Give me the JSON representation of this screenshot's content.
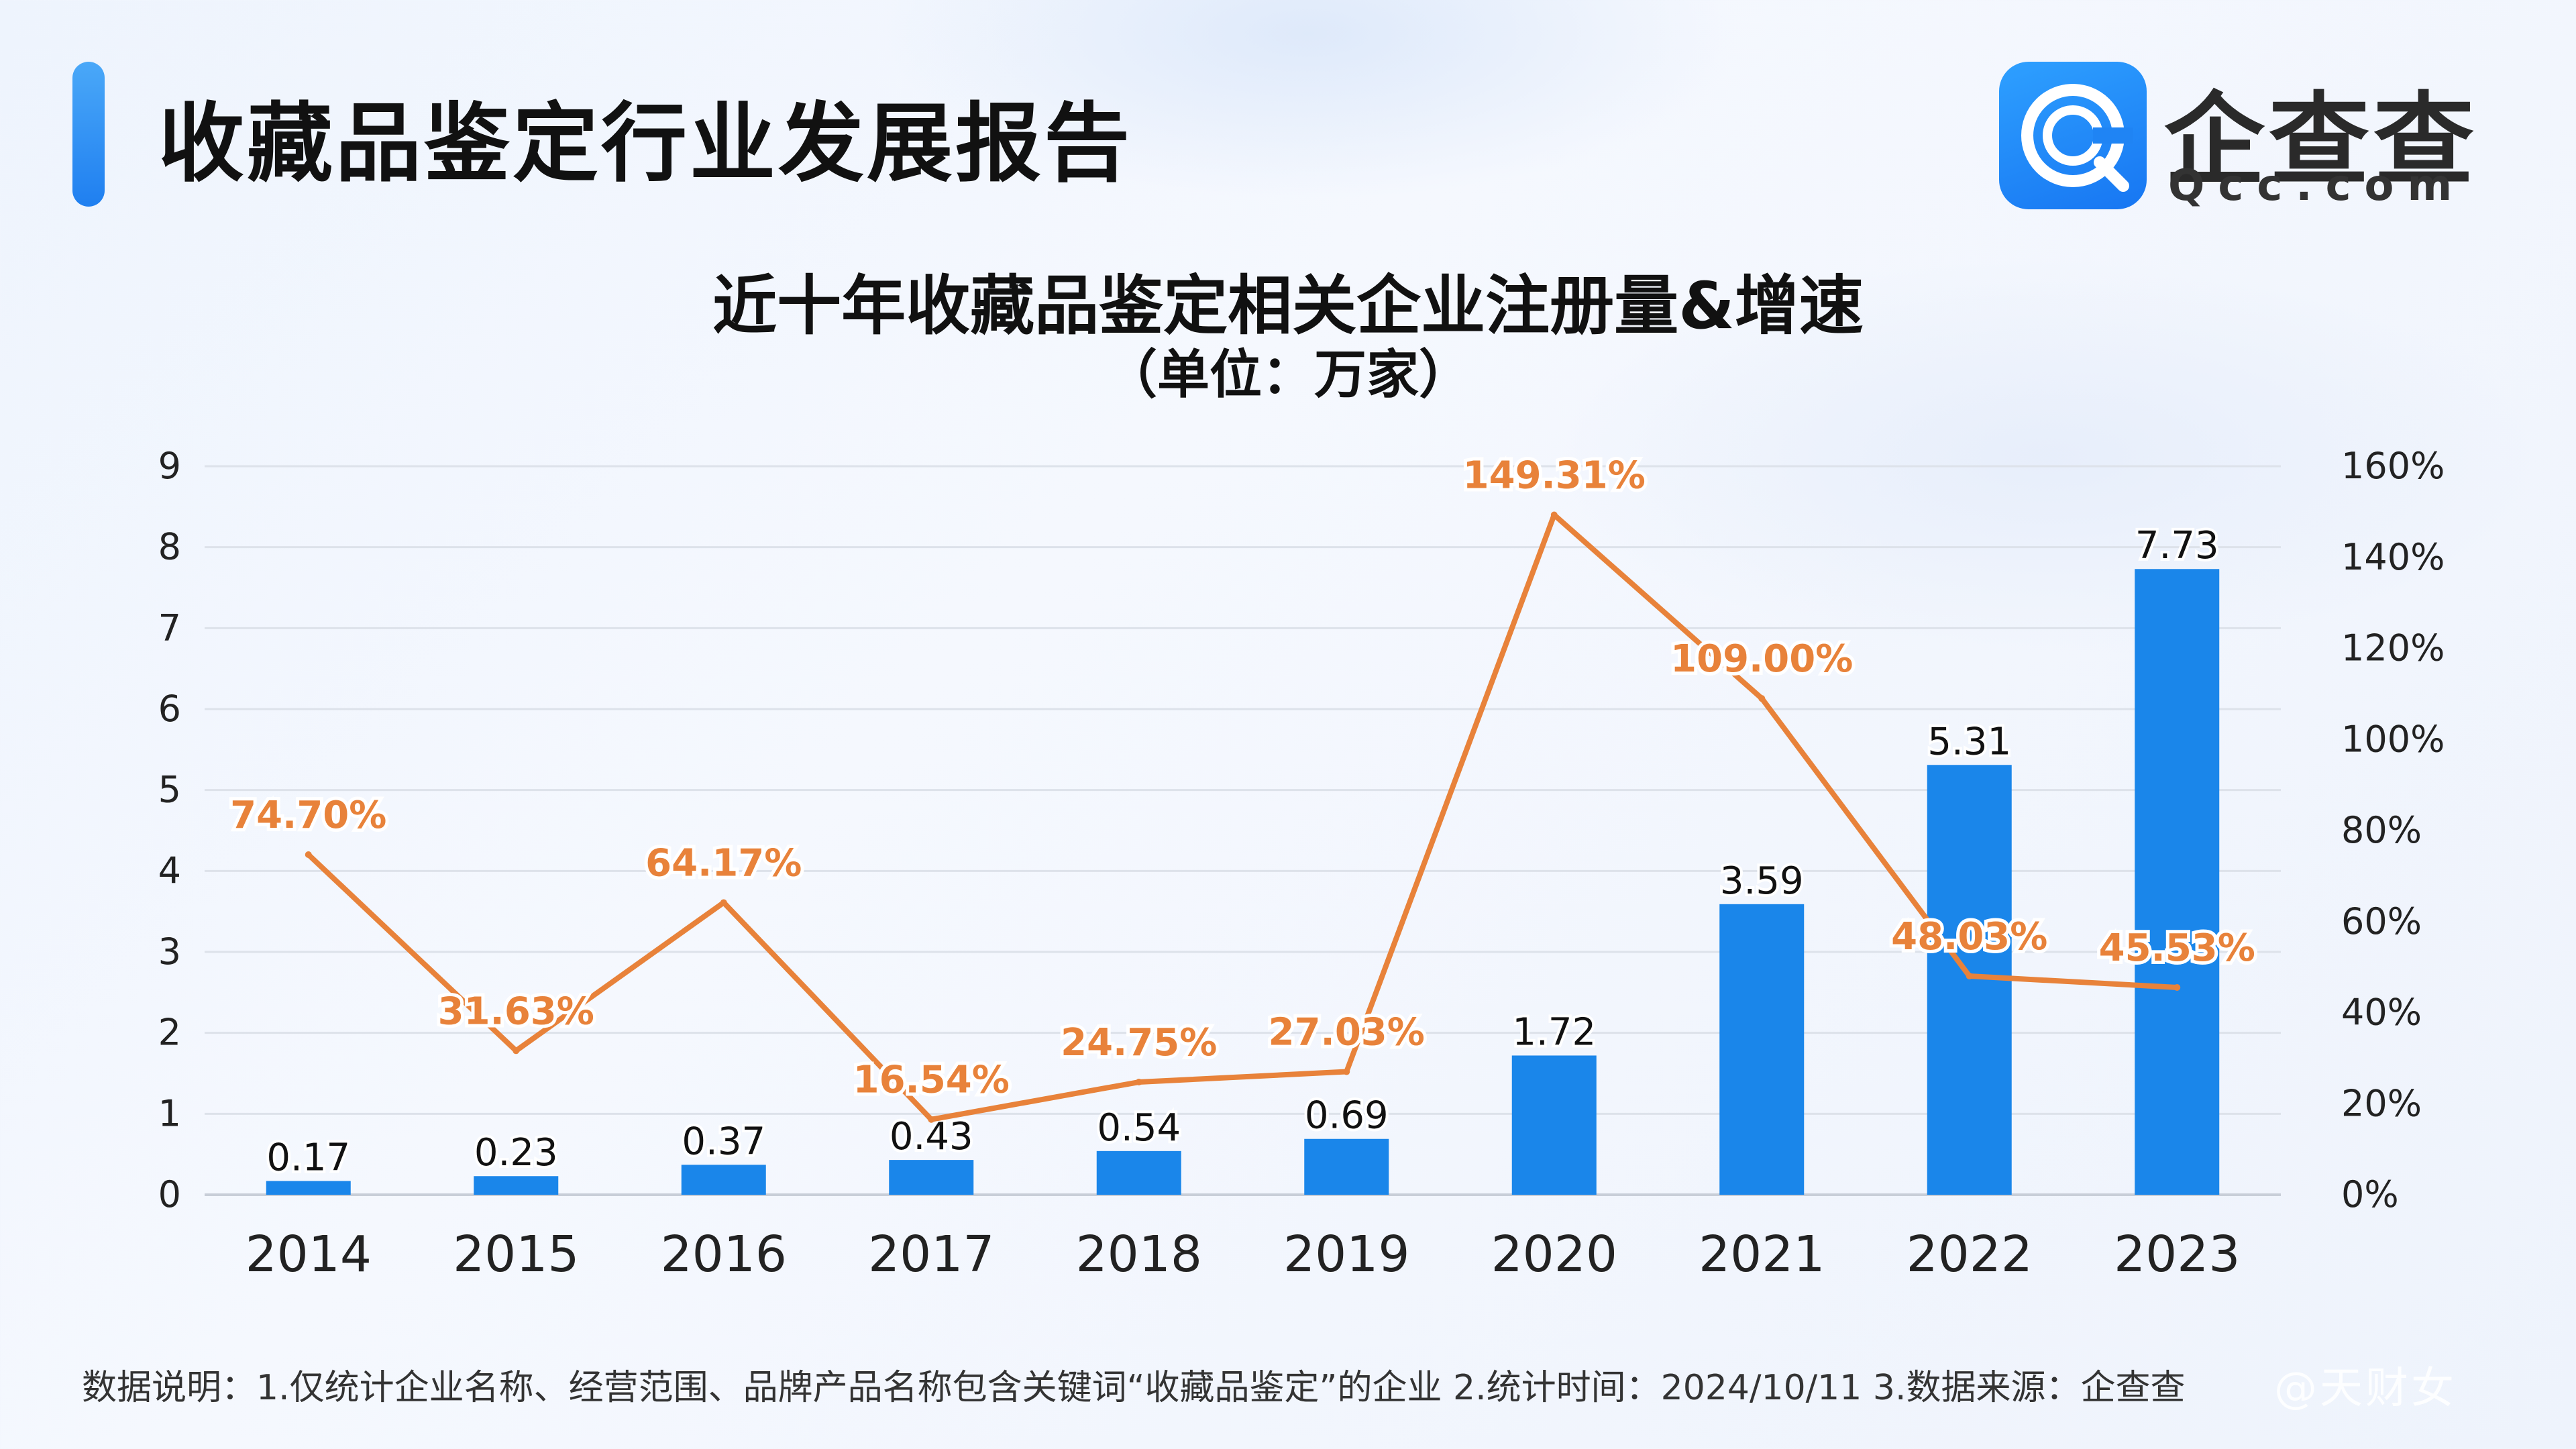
{
  "report_title": "收藏品鉴定行业发展报告",
  "logo": {
    "brand": "企查查",
    "sub": "Qcc.com",
    "icon": "qcc-logo-icon"
  },
  "footnote": "数据说明：1.仅统计企业名称、经营范围、品牌产品名称包含关键词“收藏品鉴定”的企业   2.统计时间：2024/10/11    3.数据来源：企查查",
  "watermark": "@天财女",
  "colors": {
    "bar": "#1a86ea",
    "line": "#e8823a",
    "accent": "#2a8cf4",
    "grid": "#dde2ea"
  },
  "chart_data": {
    "type": "bar",
    "title": "近十年收藏品鉴定相关企业注册量&增速",
    "subtitle": "（单位：万家）",
    "categories": [
      "2014",
      "2015",
      "2016",
      "2017",
      "2018",
      "2019",
      "2020",
      "2021",
      "2022",
      "2023"
    ],
    "series": [
      {
        "type": "bar",
        "axis": "left",
        "values": [
          0.17,
          0.23,
          0.37,
          0.43,
          0.54,
          0.69,
          1.72,
          3.59,
          5.31,
          7.73
        ],
        "labels": [
          "0.17",
          "0.23",
          "0.37",
          "0.43",
          "0.54",
          "0.69",
          "1.72",
          "3.59",
          "5.31",
          "7.73"
        ]
      },
      {
        "type": "line",
        "axis": "right",
        "values": [
          74.7,
          31.63,
          64.17,
          16.54,
          24.75,
          27.03,
          149.31,
          109.0,
          48.03,
          45.53
        ],
        "labels": [
          "74.70%",
          "31.63%",
          "64.17%",
          "16.54%",
          "24.75%",
          "27.03%",
          "149.31%",
          "109.00%",
          "48.03%",
          "45.53%"
        ]
      }
    ],
    "y_left": {
      "min": 0,
      "max": 9,
      "ticks": [
        "0",
        "1",
        "2",
        "3",
        "4",
        "5",
        "6",
        "7",
        "8",
        "9"
      ]
    },
    "y_right": {
      "min": 0,
      "max": 160,
      "ticks": [
        "0%",
        "20%",
        "40%",
        "60%",
        "80%",
        "100%",
        "120%",
        "140%",
        "160%"
      ]
    },
    "grid": true,
    "legend": "none"
  }
}
